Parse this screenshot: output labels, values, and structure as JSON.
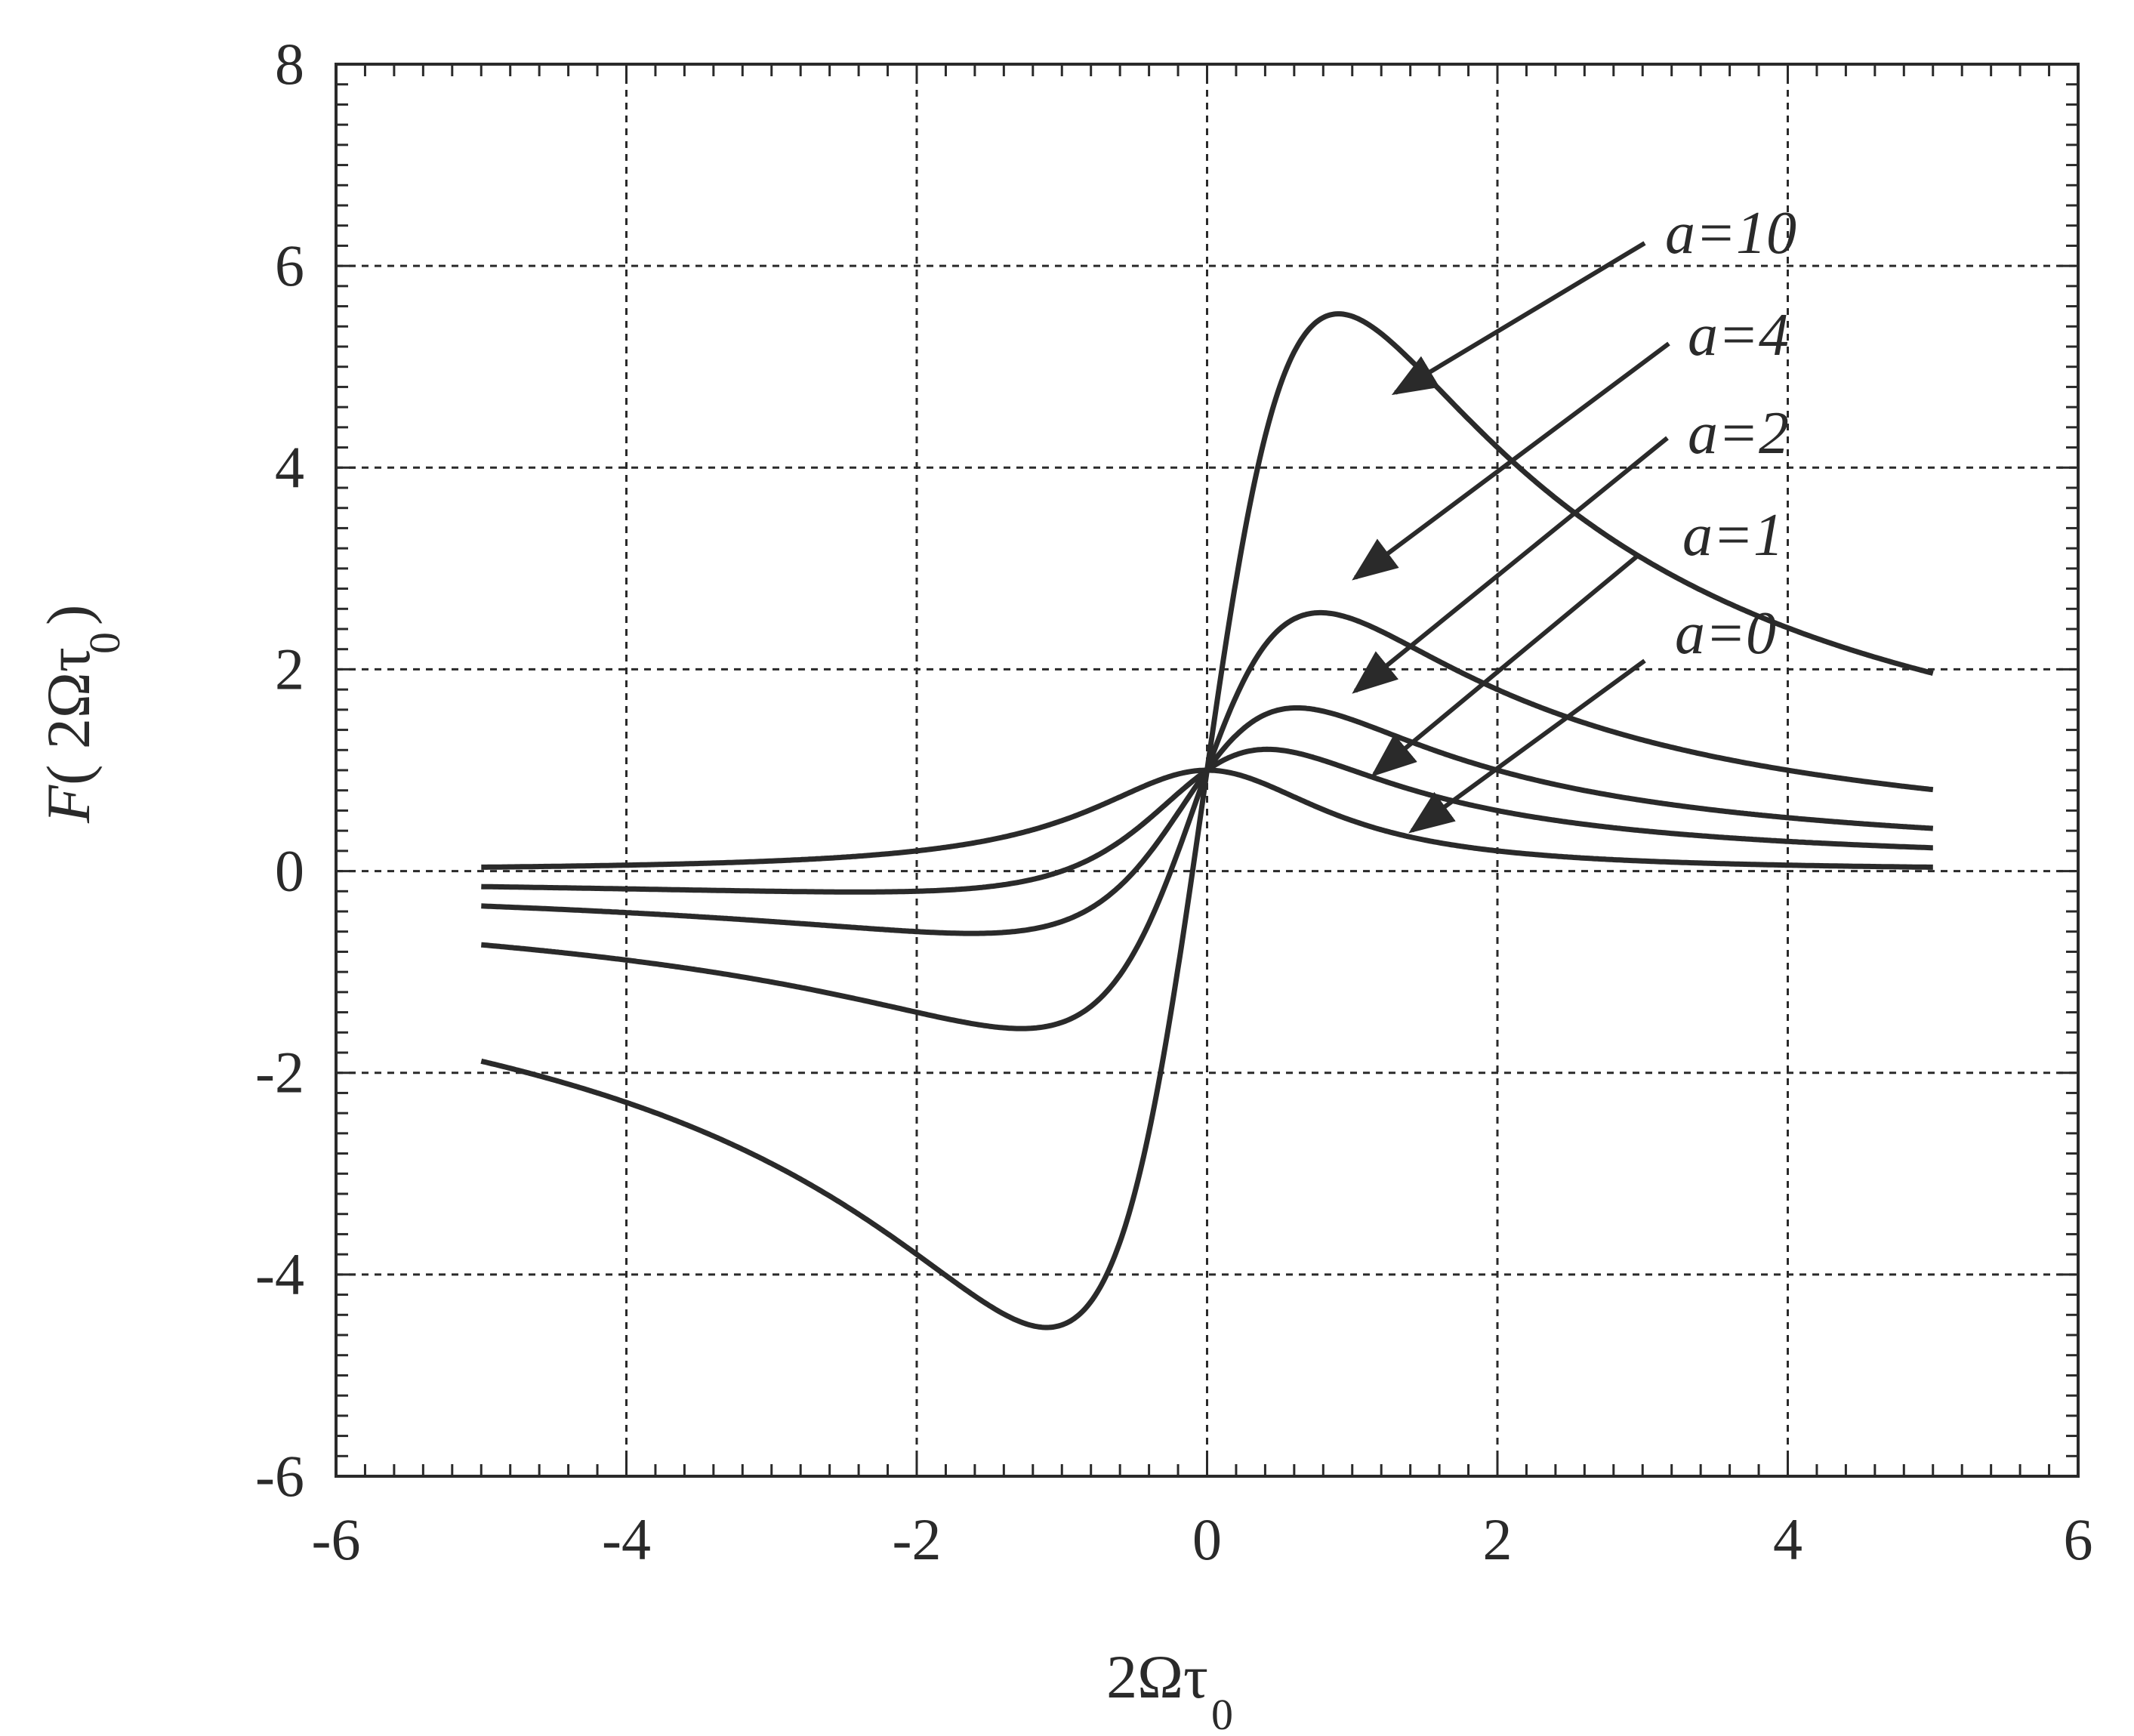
{
  "chart_data": {
    "type": "line",
    "xlabel": "2Ωτ0",
    "ylabel": "F(2Ωτ0)",
    "xlim": [
      -6,
      6
    ],
    "ylim": [
      -6,
      8
    ],
    "xticks": [
      -6,
      -4,
      -2,
      0,
      2,
      4,
      6
    ],
    "yticks": [
      -6,
      -4,
      -2,
      0,
      2,
      4,
      6,
      8
    ],
    "x_tick_labels": [
      "-6",
      "-4",
      "-2",
      "0",
      "2",
      "4",
      "6"
    ],
    "y_tick_labels": [
      "-6",
      "-4",
      "-2",
      "0",
      "2",
      "4",
      "6",
      "8"
    ],
    "grid": true,
    "x_range": [
      -5,
      5
    ],
    "series": [
      {
        "name": "a=0",
        "a": 0
      },
      {
        "name": "a=1",
        "a": 1
      },
      {
        "name": "a=2",
        "a": 2
      },
      {
        "name": "a=4",
        "a": 4
      },
      {
        "name": "a=10",
        "a": 10
      }
    ],
    "annotations": [
      {
        "text": "a=10",
        "series": "a=10"
      },
      {
        "text": "a=4",
        "series": "a=4"
      },
      {
        "text": "a=2",
        "series": "a=2"
      },
      {
        "text": "a=1",
        "series": "a=1"
      },
      {
        "text": "a=0",
        "series": "a=0"
      }
    ],
    "color": "#2a2a2a"
  }
}
